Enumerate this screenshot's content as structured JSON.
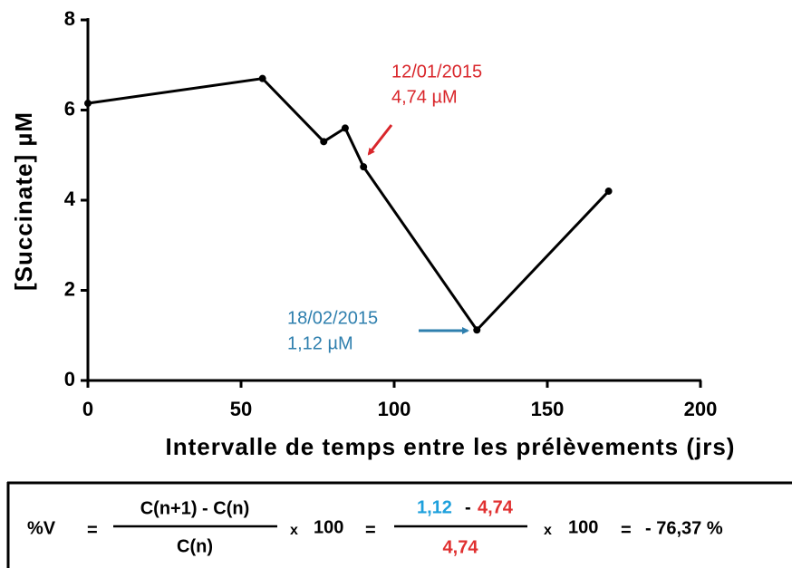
{
  "chart_data": {
    "type": "line",
    "x_label": "Intervalle de temps entre les prélèvements (jrs)",
    "y_label": "[Succinate]  µM",
    "x": [
      0,
      57,
      77,
      84,
      90,
      127,
      170
    ],
    "values": [
      6.15,
      6.7,
      5.3,
      5.6,
      4.74,
      1.12,
      4.2
    ],
    "color": "#000000",
    "xlim": [
      0,
      200
    ],
    "xticks": [
      0,
      50,
      100,
      150,
      200
    ],
    "ylim": [
      0,
      8
    ],
    "yticks": [
      0,
      2,
      4,
      6,
      8
    ],
    "grid": false,
    "annotations": [
      {
        "text": [
          "12/01/2015",
          "4,74 µM"
        ],
        "color": "#d9262b"
      },
      {
        "text": [
          "18/02/2015",
          "1,12 µM"
        ],
        "color": "#2e7fae"
      }
    ]
  },
  "formula": {
    "lhs": "%V",
    "eq1": "=",
    "num1": "C(n+1) - C(n)",
    "den1": "C(n)",
    "times1": "x",
    "hundred1": "100",
    "eq2": "=",
    "num2a": "1,12",
    "num2op": "-",
    "num2b": "4,74",
    "den2": "4,74",
    "times2": "x",
    "hundred2": "100",
    "eq3": "=",
    "result": "- 76,37 %"
  }
}
